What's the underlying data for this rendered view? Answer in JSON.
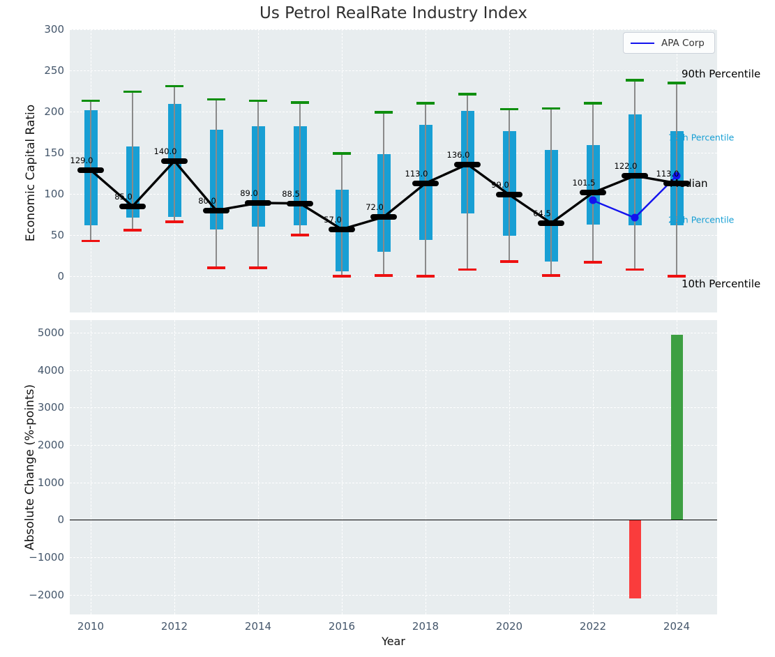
{
  "chart_data": [
    {
      "id": "industry_percentile_boxes",
      "type": "boxplot",
      "title": "Us Petrol RealRate Industry Index",
      "ylabel": "Economic Capital Ratio",
      "ylim": [
        -44,
        300
      ],
      "yticks": [
        300,
        250,
        200,
        150,
        100,
        50,
        0
      ],
      "grid": true,
      "legend": {
        "label": "APA Corp",
        "position": "upper right"
      },
      "years": [
        2010,
        2011,
        2012,
        2013,
        2014,
        2015,
        2016,
        2017,
        2018,
        2019,
        2020,
        2021,
        2022,
        2023,
        2024
      ],
      "p10": [
        43,
        56,
        66,
        10,
        10,
        50,
        0,
        1,
        0,
        8,
        18,
        1,
        17,
        8,
        0
      ],
      "p25": [
        62,
        71,
        72,
        57,
        60,
        62,
        6,
        30,
        44,
        76,
        49,
        18,
        63,
        62,
        62
      ],
      "median": [
        129.0,
        85.0,
        140.0,
        80.0,
        89.0,
        88.5,
        57.0,
        72.0,
        113.0,
        136.0,
        99.0,
        64.5,
        101.5,
        122.0,
        113.0
      ],
      "p75": [
        202,
        158,
        209,
        178,
        182,
        182,
        105,
        148,
        184,
        201,
        176,
        153,
        159,
        197,
        176
      ],
      "p90": [
        213,
        224,
        231,
        215,
        213,
        211,
        149,
        199,
        210,
        221,
        203,
        204,
        210,
        238,
        235
      ],
      "median_labels": [
        "129.0",
        "85.0",
        "140.0",
        "80.0",
        "89.0",
        "88.5",
        "57.0",
        "72.0",
        "113.0",
        "136.0",
        "99.0",
        "64.5",
        "101.5",
        "122.0",
        "113.0"
      ],
      "company_series": {
        "name": "APA Corp",
        "years": [
          2022,
          2023,
          2024
        ],
        "values": [
          92,
          71,
          122
        ]
      },
      "annotations": [
        {
          "text": "90th Percentile",
          "color": "#000000",
          "size": 15,
          "anchor_value": 246,
          "x_offset": 7
        },
        {
          "text": "75th Percentile",
          "color": "#189fd4",
          "size": 12.5,
          "anchor_value": 169,
          "x_offset": -12
        },
        {
          "text": "Median",
          "color": "#000000",
          "size": 15,
          "anchor_value": 113,
          "x_offset": -10
        },
        {
          "text": "25th Percentile",
          "color": "#189fd4",
          "size": 12.5,
          "anchor_value": 69,
          "x_offset": -12
        },
        {
          "text": "10th Percentile",
          "color": "#000000",
          "size": 15,
          "anchor_value": -9,
          "x_offset": 7
        }
      ],
      "colors": {
        "box_fill": "#189fd4",
        "whisker": "#8a8a8a",
        "cap_90th": "#0f8f0f",
        "cap_10th": "#ee1111",
        "median_line": "#000000",
        "company_line": "#1212ee"
      }
    },
    {
      "id": "absolute_change_bars",
      "type": "bar",
      "ylabel": "Absolute Change (%-points)",
      "xlabel": "Year",
      "ylim": [
        -2530,
        5340
      ],
      "yticks": [
        5000,
        4000,
        3000,
        2000,
        1000,
        0,
        -1000,
        -2000
      ],
      "xticks": [
        2010,
        2012,
        2014,
        2016,
        2018,
        2020,
        2022,
        2024
      ],
      "grid": true,
      "zero_line": true,
      "bars": [
        {
          "year": 2023,
          "value": -2100,
          "color": "#fa3c3c"
        },
        {
          "year": 2024,
          "value": 4950,
          "color": "#3d9f42"
        }
      ]
    }
  ],
  "minus_sign": "−"
}
